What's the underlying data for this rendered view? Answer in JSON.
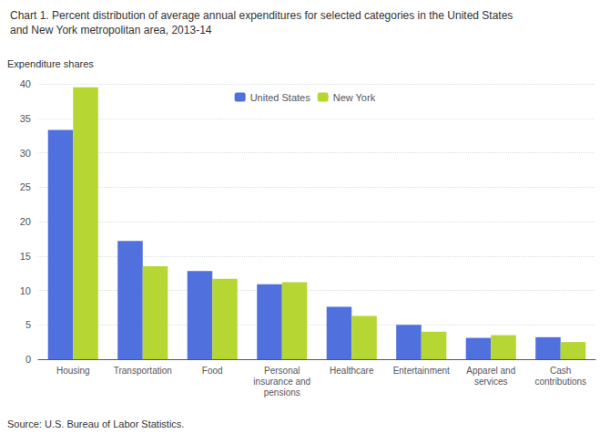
{
  "chart_data": {
    "type": "bar",
    "title": "Chart 1. Percent distribution of average annual expenditures for selected categories in the United States",
    "subtitle": "and New York metropolitan area, 2013-14",
    "ylabel": "Expenditure shares",
    "annotations": [
      "Source: U.S. Bureau of Labor Statistics."
    ],
    "categories": [
      "Housing",
      "Transportation",
      "Food",
      "Personal\ninsurance and\npensions",
      "Healthcare",
      "Entertainment",
      "Apparel and\nservices",
      "Cash\ncontributions"
    ],
    "series": [
      {
        "name": "United States",
        "values": [
          33.3,
          17.2,
          12.8,
          10.9,
          7.6,
          5.0,
          3.1,
          3.2
        ]
      },
      {
        "name": "New York",
        "values": [
          39.5,
          13.5,
          11.7,
          11.2,
          6.3,
          4.0,
          3.5,
          2.5
        ]
      }
    ],
    "ylim": [
      0,
      40
    ],
    "yticks": [
      0,
      5,
      10,
      15,
      20,
      25,
      30,
      35,
      40
    ],
    "grid": true,
    "legend": "top"
  }
}
